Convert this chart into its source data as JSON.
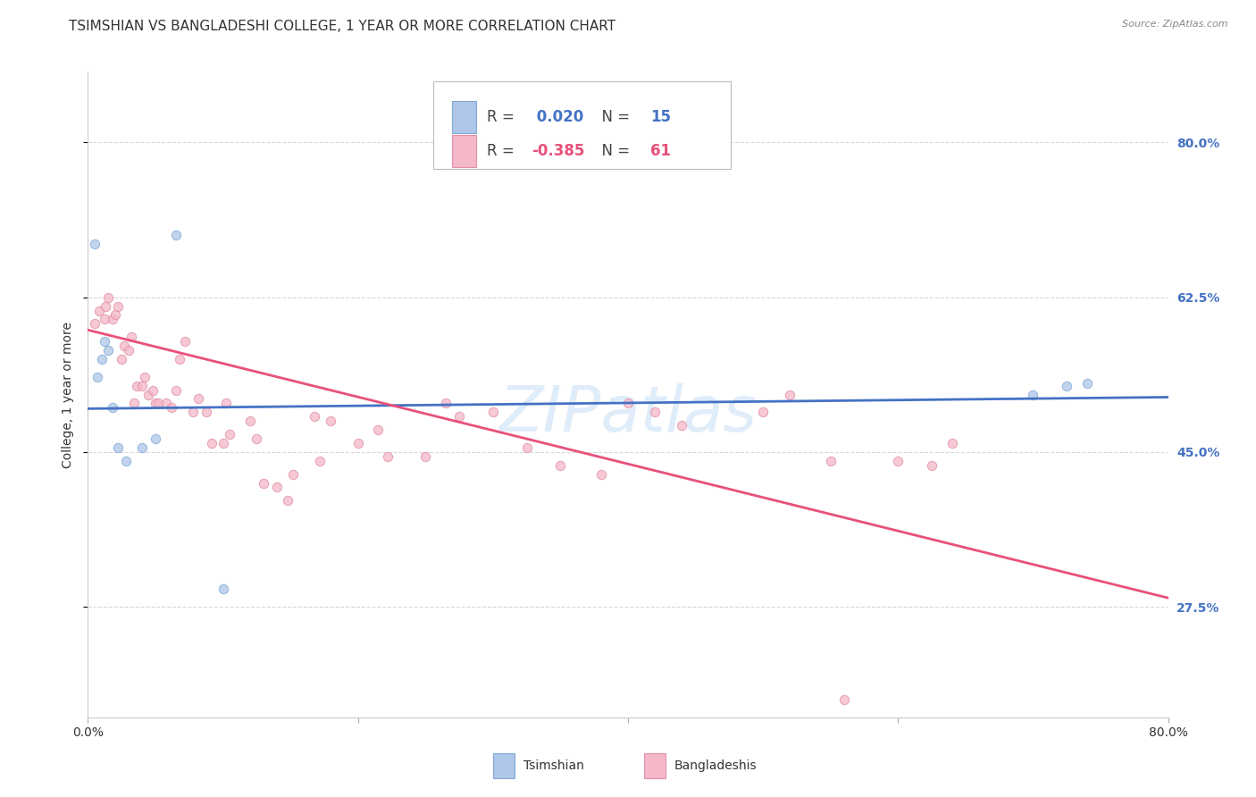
{
  "title": "TSIMSHIAN VS BANGLADESHI COLLEGE, 1 YEAR OR MORE CORRELATION CHART",
  "source": "Source: ZipAtlas.com",
  "ylabel": "College, 1 year or more",
  "ytick_labels": [
    "27.5%",
    "45.0%",
    "62.5%",
    "80.0%"
  ],
  "ytick_values": [
    0.275,
    0.45,
    0.625,
    0.8
  ],
  "xmin": 0.0,
  "xmax": 0.8,
  "ymin": 0.15,
  "ymax": 0.88,
  "watermark": "ZIPatlas",
  "legend_r_label": "R = ",
  "legend_blue_r_val": " 0.020",
  "legend_blue_n_label": "  N = ",
  "legend_blue_n_val": "15",
  "legend_pink_r_val": "-0.385",
  "legend_pink_n_label": "  N = ",
  "legend_pink_n_val": "61",
  "blue_scatter_x": [
    0.005,
    0.007,
    0.01,
    0.012,
    0.015,
    0.018,
    0.022,
    0.028,
    0.04,
    0.05,
    0.065,
    0.1,
    0.7,
    0.725,
    0.74
  ],
  "blue_scatter_y": [
    0.685,
    0.535,
    0.555,
    0.575,
    0.565,
    0.5,
    0.455,
    0.44,
    0.455,
    0.465,
    0.695,
    0.295,
    0.515,
    0.525,
    0.528
  ],
  "pink_scatter_x": [
    0.005,
    0.008,
    0.012,
    0.013,
    0.015,
    0.018,
    0.02,
    0.022,
    0.025,
    0.027,
    0.03,
    0.032,
    0.034,
    0.036,
    0.04,
    0.042,
    0.045,
    0.048,
    0.05,
    0.052,
    0.058,
    0.062,
    0.065,
    0.068,
    0.072,
    0.078,
    0.082,
    0.088,
    0.092,
    0.1,
    0.102,
    0.105,
    0.12,
    0.125,
    0.13,
    0.14,
    0.148,
    0.152,
    0.168,
    0.172,
    0.18,
    0.2,
    0.215,
    0.222,
    0.25,
    0.265,
    0.275,
    0.3,
    0.325,
    0.35,
    0.38,
    0.4,
    0.42,
    0.44,
    0.5,
    0.52,
    0.55,
    0.6,
    0.625,
    0.64,
    0.56
  ],
  "pink_scatter_y": [
    0.595,
    0.61,
    0.6,
    0.615,
    0.625,
    0.6,
    0.605,
    0.615,
    0.555,
    0.57,
    0.565,
    0.58,
    0.505,
    0.525,
    0.525,
    0.535,
    0.515,
    0.52,
    0.505,
    0.505,
    0.505,
    0.5,
    0.52,
    0.555,
    0.575,
    0.495,
    0.51,
    0.495,
    0.46,
    0.46,
    0.505,
    0.47,
    0.485,
    0.465,
    0.415,
    0.41,
    0.395,
    0.425,
    0.49,
    0.44,
    0.485,
    0.46,
    0.475,
    0.445,
    0.445,
    0.505,
    0.49,
    0.495,
    0.455,
    0.435,
    0.425,
    0.505,
    0.495,
    0.48,
    0.495,
    0.515,
    0.44,
    0.44,
    0.435,
    0.46,
    0.17
  ],
  "blue_line_x": [
    0.0,
    0.8
  ],
  "blue_line_y": [
    0.499,
    0.512
  ],
  "pink_line_x": [
    0.0,
    0.8
  ],
  "pink_line_y": [
    0.588,
    0.285
  ],
  "blue_color": "#aec6e8",
  "blue_line_color": "#4472c4",
  "pink_color": "#f5b8c8",
  "pink_line_color": "#e8507a",
  "background_color": "#ffffff",
  "grid_color": "#d8d8d8",
  "right_label_color": "#4472c4",
  "title_fontsize": 11,
  "axis_label_fontsize": 10,
  "tick_fontsize": 10,
  "scatter_size": 55,
  "scatter_alpha": 0.75,
  "scatter_linewidth": 0.8,
  "scatter_edge_blue": "#80aad4",
  "scatter_edge_pink": "#e090a8"
}
